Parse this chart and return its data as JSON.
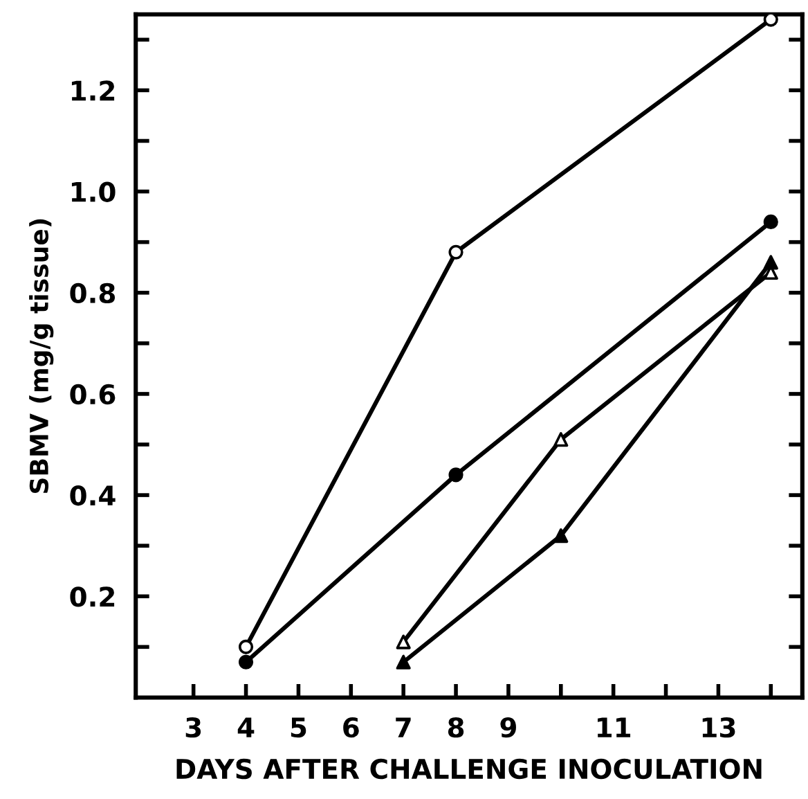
{
  "chart_data": {
    "type": "line",
    "xlabel": "DAYS AFTER CHALLENGE INOCULATION",
    "ylabel": "SBMV (mg/g tissue)",
    "xlim": [
      1.9,
      14.6
    ],
    "ylim": [
      0,
      1.35
    ],
    "xticks": [
      3,
      4,
      5,
      6,
      7,
      8,
      9,
      {
        "value": 10,
        "label": null
      },
      11,
      {
        "value": 12,
        "label": null
      },
      13,
      {
        "value": 14,
        "label": null
      }
    ],
    "yticks": [
      {
        "value": 0.1,
        "label": null
      },
      0.2,
      {
        "value": 0.3,
        "label": null
      },
      0.4,
      {
        "value": 0.5,
        "label": null
      },
      0.6,
      {
        "value": 0.7,
        "label": null
      },
      0.8,
      {
        "value": 0.9,
        "label": null
      },
      {
        "value": 1.0,
        "label": "1.0"
      },
      {
        "value": 1.1,
        "label": null
      },
      1.2,
      {
        "value": 1.3,
        "label": null
      }
    ],
    "grid": false,
    "legend": false,
    "line_style": "solid",
    "series": [
      {
        "color": "#000000",
        "marker": "circle",
        "colors": [
          "#ffffff",
          "#ffffff",
          "#ffffff"
        ],
        "x": [
          4,
          8,
          14
        ],
        "values": [
          0.1,
          0.88,
          1.34
        ]
      },
      {
        "color": "#000000",
        "marker": "circle",
        "colors": [
          "#000000",
          "#000000",
          "#000000"
        ],
        "x": [
          4,
          8,
          14
        ],
        "values": [
          0.07,
          0.44,
          0.94
        ]
      },
      {
        "color": "#000000",
        "marker": "triangle",
        "colors": [
          "#ffffff",
          "#ffffff",
          "#ffffff"
        ],
        "x": [
          7,
          10,
          14
        ],
        "values": [
          0.11,
          0.51,
          0.84
        ]
      },
      {
        "color": "#000000",
        "marker": "triangle",
        "colors": [
          "#000000",
          "#000000",
          "#000000"
        ],
        "x": [
          7,
          10,
          14
        ],
        "values": [
          0.07,
          0.32,
          0.86
        ]
      }
    ]
  }
}
